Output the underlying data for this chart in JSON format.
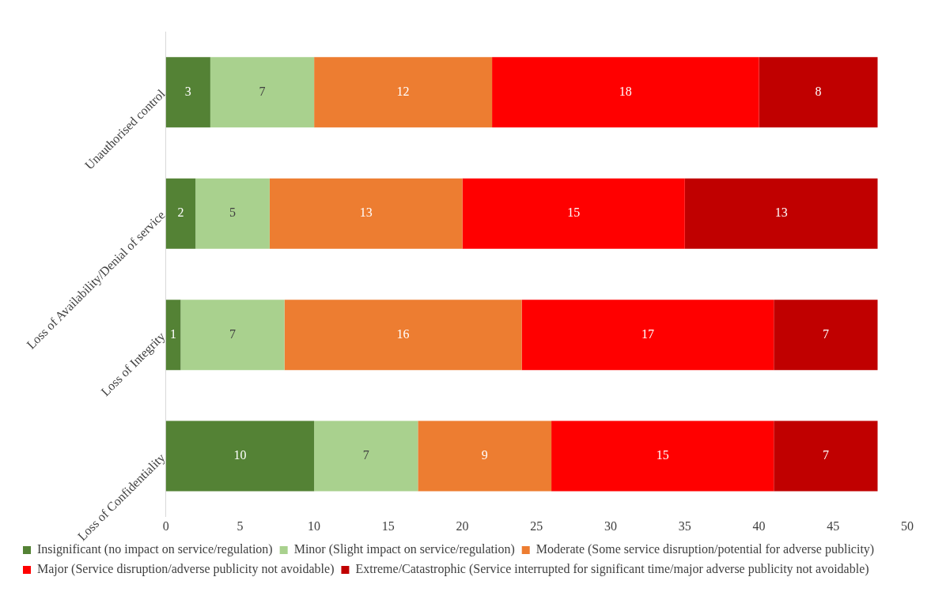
{
  "chart_data": {
    "type": "bar",
    "orientation": "horizontal",
    "stacked": true,
    "data_labels": true,
    "grid": false,
    "legend": "bottom",
    "categories": [
      "Unauthorised control",
      "Loss of Availability/Denial of service",
      "Loss of Integrity",
      "Loss of Confidentiality"
    ],
    "xlim": [
      0,
      50
    ],
    "xticks": [
      0,
      5,
      10,
      15,
      20,
      25,
      30,
      35,
      40,
      45,
      50
    ],
    "series": [
      {
        "name": "Insignificant (no impact on service/regulation)",
        "color": "#548235",
        "values": [
          3,
          2,
          1,
          10
        ]
      },
      {
        "name": "Minor (Slight impact on service/regulation)",
        "color": "#a9d18e",
        "values": [
          7,
          5,
          7,
          7
        ]
      },
      {
        "name": "Moderate (Some service disruption/potential for adverse publicity)",
        "color": "#ed7d31",
        "values": [
          12,
          13,
          16,
          9
        ]
      },
      {
        "name": "Major (Service disruption/adverse publicity not avoidable)",
        "color": "#ff0000",
        "values": [
          18,
          15,
          17,
          15
        ]
      },
      {
        "name": "Extreme/Catastrophic (Service interrupted for significant time/major adverse publicity not avoidable)",
        "color": "#c00000",
        "values": [
          8,
          13,
          7,
          7
        ]
      }
    ]
  }
}
